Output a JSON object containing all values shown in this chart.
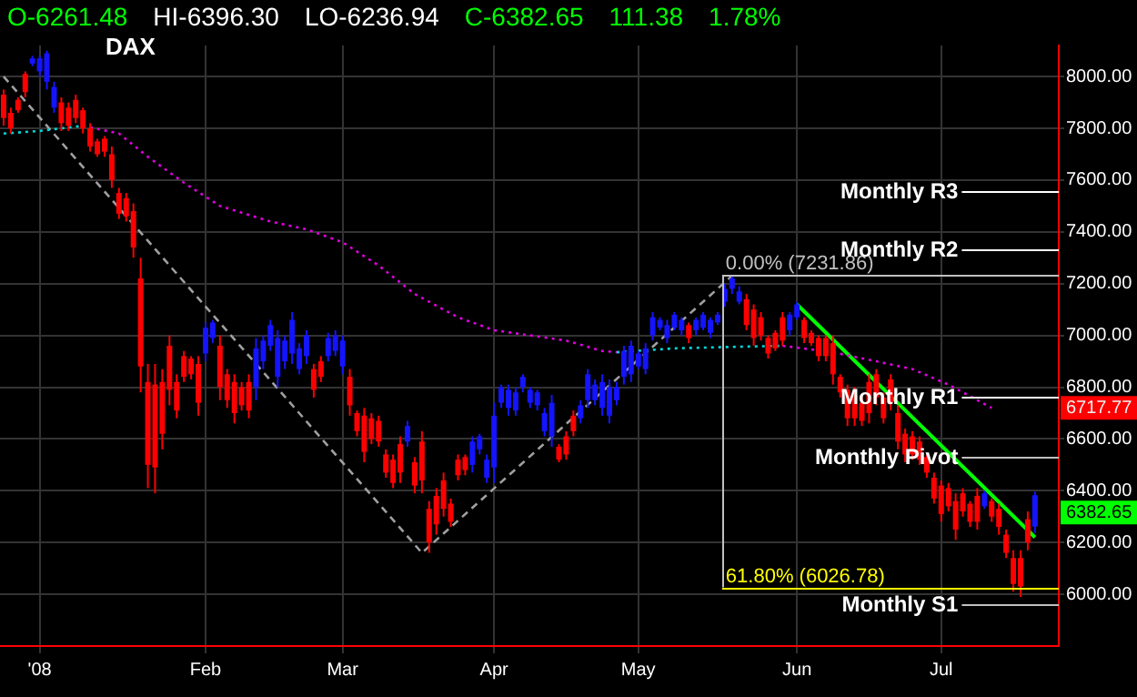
{
  "chart_data": {
    "type": "candlestick",
    "title": "DAX",
    "categories": [
      null,
      null,
      null,
      null,
      null,
      "'08",
      null,
      null,
      null,
      null,
      null,
      null,
      null,
      null,
      null,
      null,
      null,
      null,
      null,
      null,
      null,
      null,
      null,
      null,
      null,
      null,
      null,
      null,
      "Feb",
      null,
      null,
      null,
      null,
      null,
      null,
      null,
      null,
      null,
      null,
      null,
      null,
      null,
      null,
      null,
      null,
      null,
      null,
      "Mar",
      null,
      null,
      null,
      null,
      null,
      null,
      null,
      null,
      null,
      null,
      null,
      null,
      null,
      null,
      null,
      null,
      null,
      null,
      null,
      null,
      "Apr",
      null,
      null,
      null,
      null,
      null,
      null,
      null,
      null,
      null,
      null,
      null,
      null,
      null,
      null,
      null,
      null,
      null,
      null,
      null,
      "May",
      null,
      null,
      null,
      null,
      null,
      null,
      null,
      null,
      null,
      null,
      null,
      null,
      null,
      null,
      null,
      null,
      null,
      null,
      null,
      null,
      null,
      "Jun",
      null,
      null,
      null,
      null,
      null,
      null,
      null,
      null,
      null,
      null,
      null,
      null,
      null,
      null,
      null,
      null,
      null,
      null,
      null,
      "Jul",
      null,
      null,
      null,
      null,
      null,
      null,
      null,
      null,
      null,
      null,
      null,
      null,
      null
    ],
    "ohlc": [
      [
        7930,
        7950,
        7810,
        7840
      ],
      [
        7860,
        7880,
        7780,
        7800
      ],
      [
        7910,
        7920,
        7860,
        7870
      ],
      [
        8010,
        8020,
        7920,
        7940
      ],
      [
        8050,
        8080,
        8040,
        8070
      ],
      [
        8020,
        8080,
        8000,
        8070
      ],
      [
        7980,
        8100,
        7950,
        8090
      ],
      [
        7880,
        7980,
        7860,
        7960
      ],
      [
        7900,
        7920,
        7790,
        7820
      ],
      [
        7880,
        7900,
        7790,
        7810
      ],
      [
        7910,
        7930,
        7820,
        7840
      ],
      [
        7870,
        7880,
        7780,
        7800
      ],
      [
        7800,
        7820,
        7710,
        7730
      ],
      [
        7750,
        7760,
        7690,
        7700
      ],
      [
        7760,
        7770,
        7690,
        7710
      ],
      [
        7700,
        7730,
        7570,
        7600
      ],
      [
        7550,
        7570,
        7450,
        7470
      ],
      [
        7530,
        7550,
        7440,
        7460
      ],
      [
        7480,
        7510,
        7300,
        7340
      ],
      [
        7220,
        7300,
        6780,
        6880
      ],
      [
        6820,
        6890,
        6410,
        6500
      ],
      [
        6810,
        6890,
        6390,
        6490
      ],
      [
        6820,
        6870,
        6560,
        6620
      ],
      [
        6960,
        7000,
        6730,
        6790
      ],
      [
        6820,
        6850,
        6680,
        6710
      ],
      [
        6920,
        6940,
        6820,
        6840
      ],
      [
        6910,
        6920,
        6830,
        6850
      ],
      [
        6890,
        6920,
        6690,
        6740
      ],
      [
        6930,
        7050,
        6900,
        7030
      ],
      [
        6990,
        7060,
        6970,
        7050
      ],
      [
        6960,
        7000,
        6750,
        6800
      ],
      [
        6850,
        6870,
        6720,
        6750
      ],
      [
        6820,
        6850,
        6660,
        6700
      ],
      [
        6800,
        6820,
        6710,
        6730
      ],
      [
        6820,
        6850,
        6680,
        6710
      ],
      [
        6800,
        6990,
        6750,
        6950
      ],
      [
        6900,
        7000,
        6870,
        6980
      ],
      [
        6960,
        7060,
        6940,
        7040
      ],
      [
        6840,
        7020,
        6800,
        6990
      ],
      [
        6900,
        7000,
        6870,
        6980
      ],
      [
        6930,
        7090,
        6890,
        7060
      ],
      [
        6870,
        6970,
        6850,
        6950
      ],
      [
        6920,
        7020,
        6890,
        7000
      ],
      [
        6870,
        6890,
        6760,
        6790
      ],
      [
        6900,
        6920,
        6820,
        6840
      ],
      [
        6920,
        7010,
        6900,
        6990
      ],
      [
        6940,
        7020,
        6920,
        7000
      ],
      [
        6880,
        7000,
        6850,
        6980
      ],
      [
        6840,
        6870,
        6690,
        6730
      ],
      [
        6700,
        6710,
        6610,
        6630
      ],
      [
        6690,
        6720,
        6510,
        6550
      ],
      [
        6680,
        6700,
        6580,
        6600
      ],
      [
        6670,
        6690,
        6570,
        6590
      ],
      [
        6540,
        6560,
        6450,
        6470
      ],
      [
        6520,
        6540,
        6410,
        6430
      ],
      [
        6580,
        6610,
        6430,
        6470
      ],
      [
        6590,
        6670,
        6570,
        6650
      ],
      [
        6510,
        6530,
        6390,
        6420
      ],
      [
        6590,
        6630,
        6390,
        6440
      ],
      [
        6330,
        6360,
        6160,
        6200
      ],
      [
        6380,
        6410,
        6230,
        6270
      ],
      [
        6440,
        6470,
        6300,
        6330
      ],
      [
        6350,
        6370,
        6260,
        6280
      ],
      [
        6520,
        6540,
        6440,
        6460
      ],
      [
        6530,
        6540,
        6460,
        6480
      ],
      [
        6500,
        6610,
        6470,
        6590
      ],
      [
        6560,
        6620,
        6540,
        6610
      ],
      [
        6450,
        6540,
        6430,
        6520
      ],
      [
        6490,
        6740,
        6430,
        6690
      ],
      [
        6740,
        6810,
        6720,
        6800
      ],
      [
        6720,
        6810,
        6690,
        6790
      ],
      [
        6710,
        6800,
        6690,
        6780
      ],
      [
        6800,
        6850,
        6780,
        6840
      ],
      [
        6740,
        6800,
        6720,
        6790
      ],
      [
        6730,
        6790,
        6710,
        6780
      ],
      [
        6630,
        6720,
        6610,
        6700
      ],
      [
        6610,
        6770,
        6570,
        6740
      ],
      [
        6570,
        6580,
        6510,
        6520
      ],
      [
        6610,
        6630,
        6520,
        6540
      ],
      [
        6690,
        6710,
        6610,
        6630
      ],
      [
        6680,
        6750,
        6660,
        6730
      ],
      [
        6750,
        6870,
        6720,
        6850
      ],
      [
        6750,
        6830,
        6730,
        6810
      ],
      [
        6720,
        6850,
        6690,
        6820
      ],
      [
        6690,
        6830,
        6660,
        6800
      ],
      [
        6750,
        6820,
        6730,
        6800
      ],
      [
        6840,
        6960,
        6810,
        6940
      ],
      [
        6850,
        6980,
        6820,
        6960
      ],
      [
        6880,
        6940,
        6870,
        6930
      ],
      [
        6870,
        6970,
        6850,
        6950
      ],
      [
        7000,
        7090,
        6980,
        7070
      ],
      [
        7030,
        7070,
        7020,
        7060
      ],
      [
        6990,
        7060,
        6970,
        7040
      ],
      [
        7030,
        7090,
        7020,
        7080
      ],
      [
        7020,
        7070,
        7000,
        7060
      ],
      [
        7040,
        7050,
        6970,
        6990
      ],
      [
        7020,
        7070,
        7000,
        7060
      ],
      [
        7030,
        7090,
        7020,
        7080
      ],
      [
        7010,
        7070,
        6990,
        7060
      ],
      [
        7050,
        7090,
        7040,
        7080
      ],
      [
        7130,
        7200,
        7110,
        7180
      ],
      [
        7180,
        7230,
        7160,
        7220
      ],
      [
        7130,
        7190,
        7120,
        7170
      ],
      [
        7140,
        7160,
        7020,
        7040
      ],
      [
        7100,
        7120,
        6960,
        6990
      ],
      [
        7070,
        7090,
        6980,
        7000
      ],
      [
        6990,
        7000,
        6910,
        6930
      ],
      [
        7010,
        7020,
        6940,
        6950
      ],
      [
        7070,
        7090,
        6960,
        6980
      ],
      [
        7020,
        7090,
        7000,
        7080
      ],
      [
        7070,
        7130,
        7060,
        7120
      ],
      [
        7060,
        7070,
        6970,
        6990
      ],
      [
        7010,
        7020,
        6960,
        6970
      ],
      [
        6990,
        7000,
        6900,
        6920
      ],
      [
        6990,
        7000,
        6900,
        6920
      ],
      [
        6970,
        7000,
        6810,
        6850
      ],
      [
        6840,
        6850,
        6760,
        6780
      ],
      [
        6790,
        6810,
        6650,
        6680
      ],
      [
        6770,
        6800,
        6650,
        6680
      ],
      [
        6740,
        6760,
        6650,
        6670
      ],
      [
        6820,
        6850,
        6660,
        6700
      ],
      [
        6850,
        6870,
        6730,
        6760
      ],
      [
        6760,
        6780,
        6660,
        6680
      ],
      [
        6830,
        6850,
        6710,
        6740
      ],
      [
        6700,
        6730,
        6560,
        6590
      ],
      [
        6620,
        6640,
        6510,
        6540
      ],
      [
        6610,
        6630,
        6520,
        6540
      ],
      [
        6590,
        6610,
        6500,
        6520
      ],
      [
        6530,
        6540,
        6450,
        6470
      ],
      [
        6450,
        6470,
        6350,
        6370
      ],
      [
        6420,
        6440,
        6280,
        6310
      ],
      [
        6410,
        6430,
        6320,
        6340
      ],
      [
        6360,
        6390,
        6210,
        6250
      ],
      [
        6390,
        6410,
        6300,
        6320
      ],
      [
        6350,
        6360,
        6260,
        6280
      ],
      [
        6380,
        6410,
        6250,
        6280
      ],
      [
        6340,
        6400,
        6330,
        6390
      ],
      [
        6360,
        6370,
        6280,
        6300
      ],
      [
        6330,
        6350,
        6230,
        6260
      ],
      [
        6230,
        6250,
        6140,
        6160
      ],
      [
        6140,
        6170,
        6010,
        6040
      ],
      [
        6140,
        6170,
        5990,
        6030
      ],
      [
        6290,
        6320,
        6170,
        6200
      ],
      [
        6261.48,
        6396.3,
        6236.94,
        6382.65
      ]
    ],
    "ylim": [
      5800,
      8120
    ],
    "yticks": [
      {
        "value": 6000,
        "label": "6000.00"
      },
      {
        "value": 6200,
        "label": "6200.00"
      },
      {
        "value": 6400,
        "label": "6400.00"
      },
      {
        "value": 6600,
        "label": "6600.00"
      },
      {
        "value": 6800,
        "label": "6800.00"
      },
      {
        "value": 7000,
        "label": "7000.00"
      },
      {
        "value": 7200,
        "label": "7200.00"
      },
      {
        "value": 7400,
        "label": "7400.00"
      },
      {
        "value": 7600,
        "label": "7600.00"
      },
      {
        "value": 7800,
        "label": "7800.00"
      },
      {
        "value": 8000,
        "label": "8000.00"
      }
    ],
    "grid": true,
    "series": [
      {
        "type": "line",
        "color": "#00d8d8",
        "line_style": "dotted",
        "values": [
          7780,
          null,
          null,
          null,
          null,
          7790,
          null,
          null,
          null,
          null,
          null,
          7810,
          null,
          null,
          null,
          null,
          null,
          null,
          null,
          null,
          null,
          null,
          null,
          null,
          null,
          null,
          null,
          null,
          null,
          null,
          null,
          null,
          null,
          null,
          null,
          null,
          null,
          null,
          null,
          null,
          null,
          null,
          null,
          null,
          null,
          null,
          null,
          null,
          null,
          null,
          null,
          null,
          null,
          null,
          null,
          null,
          null,
          null,
          null,
          null,
          null,
          null,
          null,
          null,
          null,
          null,
          null,
          null,
          null,
          null,
          null,
          null,
          null,
          null,
          null,
          null,
          null,
          null,
          null,
          null,
          null,
          null,
          null,
          null,
          null,
          null,
          null,
          null,
          null,
          null,
          null,
          null,
          null,
          null,
          null,
          null,
          null,
          null,
          null,
          null,
          null,
          null,
          null,
          null,
          null,
          null,
          null,
          null,
          null,
          null,
          null,
          null,
          null,
          null,
          null,
          null,
          null,
          null,
          null,
          null,
          null,
          null,
          null,
          null,
          null,
          null,
          null,
          null,
          null,
          null,
          null,
          null,
          null,
          null,
          null,
          null,
          null,
          null,
          null,
          null,
          null,
          null,
          null,
          null
        ]
      },
      {
        "type": "line",
        "color": "#e000e0",
        "line_style": "dotted",
        "values": [
          null,
          null,
          null,
          null,
          null,
          null,
          null,
          null,
          null,
          null,
          null,
          7810,
          null,
          null,
          null,
          null,
          7780,
          null,
          null,
          null,
          7690,
          null,
          null,
          null,
          null,
          7590,
          null,
          null,
          null,
          null,
          7500,
          null,
          null,
          null,
          null,
          null,
          null,
          7440,
          null,
          null,
          null,
          null,
          7410,
          null,
          null,
          null,
          null,
          7360,
          null,
          null,
          null,
          null,
          7270,
          null,
          null,
          null,
          null,
          7160,
          null,
          null,
          null,
          null,
          null,
          7070,
          null,
          null,
          null,
          null,
          7020,
          null,
          null,
          null,
          null,
          7000,
          null,
          null,
          null,
          null,
          6980,
          null,
          null,
          null,
          null,
          6940,
          null,
          6935,
          null,
          null,
          null,
          null,
          null,
          null,
          null,
          null,
          null,
          null,
          null,
          null,
          null,
          null,
          null,
          null,
          null,
          null,
          null,
          null,
          null,
          null,
          null,
          null,
          null,
          null,
          null,
          null,
          null,
          null,
          null,
          null,
          null,
          null,
          null,
          null,
          null,
          null,
          null,
          null,
          null,
          null,
          null,
          null,
          null,
          null,
          null,
          null,
          null,
          null,
          null,
          null,
          null,
          null,
          null,
          null,
          null,
          null
        ]
      },
      {
        "type": "line",
        "color": "#00d8d8",
        "line_style": "dotted",
        "values": [
          null,
          null,
          null,
          null,
          null,
          null,
          null,
          null,
          null,
          null,
          null,
          null,
          null,
          null,
          null,
          null,
          null,
          null,
          null,
          null,
          null,
          null,
          null,
          null,
          null,
          null,
          null,
          null,
          null,
          null,
          null,
          null,
          null,
          null,
          null,
          null,
          null,
          null,
          null,
          null,
          null,
          null,
          null,
          null,
          null,
          null,
          null,
          null,
          null,
          null,
          null,
          null,
          null,
          null,
          null,
          null,
          null,
          null,
          null,
          null,
          null,
          null,
          null,
          null,
          null,
          null,
          null,
          null,
          null,
          null,
          null,
          null,
          null,
          null,
          null,
          null,
          null,
          null,
          null,
          null,
          null,
          null,
          null,
          null,
          null,
          6935,
          null,
          null,
          null,
          null,
          null,
          null,
          null,
          6950,
          null,
          null,
          null,
          null,
          null,
          null,
          6955,
          null,
          null,
          null,
          null,
          null,
          null,
          null,
          6960,
          null,
          null,
          null,
          null,
          null,
          null,
          null,
          null,
          null,
          null,
          null,
          null,
          null,
          null,
          null,
          null,
          null,
          null,
          null,
          null,
          null,
          null,
          null,
          null,
          null,
          null,
          null,
          null,
          null,
          null,
          null,
          null,
          null,
          null,
          null
        ]
      },
      {
        "type": "line",
        "color": "#e000e0",
        "line_style": "dotted",
        "values": [
          null,
          null,
          null,
          null,
          null,
          null,
          null,
          null,
          null,
          null,
          null,
          null,
          null,
          null,
          null,
          null,
          null,
          null,
          null,
          null,
          null,
          null,
          null,
          null,
          null,
          null,
          null,
          null,
          null,
          null,
          null,
          null,
          null,
          null,
          null,
          null,
          null,
          null,
          null,
          null,
          null,
          null,
          null,
          null,
          null,
          null,
          null,
          null,
          null,
          null,
          null,
          null,
          null,
          null,
          null,
          null,
          null,
          null,
          null,
          null,
          null,
          null,
          null,
          null,
          null,
          null,
          null,
          null,
          null,
          null,
          null,
          null,
          null,
          null,
          null,
          null,
          null,
          null,
          null,
          null,
          null,
          null,
          null,
          null,
          null,
          null,
          null,
          null,
          null,
          null,
          null,
          null,
          null,
          null,
          null,
          null,
          null,
          null,
          null,
          null,
          null,
          null,
          null,
          null,
          null,
          null,
          null,
          null,
          6960,
          null,
          null,
          null,
          null,
          null,
          null,
          6935,
          null,
          null,
          null,
          null,
          null,
          6900,
          null,
          null,
          null,
          null,
          6870,
          null,
          null,
          null,
          null,
          6810,
          null,
          null,
          null,
          null,
          null,
          6720,
          null,
          null,
          null,
          null,
          null,
          null
        ]
      },
      {
        "type": "line",
        "color": "#a0a0a0",
        "line_style": "dashed",
        "values": [
          8000,
          null,
          null,
          null,
          null,
          null,
          null,
          null,
          null,
          null,
          null,
          null,
          null,
          null,
          null,
          null,
          null,
          null,
          null,
          null,
          null,
          null,
          null,
          null,
          null,
          null,
          null,
          null,
          null,
          null,
          null,
          null,
          null,
          null,
          null,
          null,
          null,
          null,
          null,
          null,
          null,
          null,
          null,
          null,
          null,
          null,
          null,
          null,
          null,
          null,
          null,
          null,
          null,
          null,
          null,
          null,
          null,
          null,
          6160,
          null,
          null,
          null,
          null,
          null,
          null,
          null,
          null,
          null,
          null,
          null,
          null,
          null,
          null,
          null,
          null,
          null,
          null,
          null,
          null,
          null,
          null,
          null,
          null,
          null,
          null,
          null,
          null,
          null,
          null,
          null,
          null,
          null,
          null,
          null,
          null,
          null,
          null,
          null,
          null,
          null,
          null,
          7230,
          null,
          null,
          null,
          null,
          null,
          null,
          null,
          null,
          null,
          null,
          null,
          null,
          null,
          null,
          null,
          null,
          null,
          null,
          null,
          null,
          null,
          null,
          null,
          null,
          null,
          null,
          null,
          null,
          null,
          null,
          null,
          null,
          null,
          null,
          null,
          null,
          null,
          null,
          null,
          null,
          null,
          null
        ]
      },
      {
        "type": "line",
        "color": "#00ff00",
        "line_style": "solid",
        "values": [
          null,
          null,
          null,
          null,
          null,
          null,
          null,
          null,
          null,
          null,
          null,
          null,
          null,
          null,
          null,
          null,
          null,
          null,
          null,
          null,
          null,
          null,
          null,
          null,
          null,
          null,
          null,
          null,
          null,
          null,
          null,
          null,
          null,
          null,
          null,
          null,
          null,
          null,
          null,
          null,
          null,
          null,
          null,
          null,
          null,
          null,
          null,
          null,
          null,
          null,
          null,
          null,
          null,
          null,
          null,
          null,
          null,
          null,
          null,
          null,
          null,
          null,
          null,
          null,
          null,
          null,
          null,
          null,
          null,
          null,
          null,
          null,
          null,
          null,
          null,
          null,
          null,
          null,
          null,
          null,
          null,
          null,
          null,
          null,
          null,
          null,
          null,
          null,
          null,
          null,
          null,
          null,
          null,
          null,
          null,
          null,
          null,
          null,
          null,
          null,
          null,
          null,
          null,
          null,
          null,
          null,
          null,
          null,
          null,
          null,
          7120,
          null,
          null,
          null,
          null,
          null,
          null,
          null,
          null,
          null,
          null,
          null,
          null,
          null,
          null,
          null,
          null,
          null,
          null,
          null,
          null,
          null,
          null,
          null,
          null,
          null,
          null,
          null,
          null,
          null,
          null,
          null,
          null,
          6220
        ]
      }
    ],
    "ref_lines": [
      {
        "axis": "y",
        "value": 7231.86,
        "label": "0.00% (7231.86)",
        "color": "#c0c0c0"
      },
      {
        "axis": "y",
        "value": 6026.78,
        "label": "61.80% (6026.78)",
        "color": "#ffff00"
      },
      {
        "axis": "y",
        "value": 7560,
        "label": "Monthly R3",
        "color": "#ffffff"
      },
      {
        "axis": "y",
        "value": 7330,
        "label": "Monthly R2",
        "color": "#ffffff"
      },
      {
        "axis": "y",
        "value": 6760,
        "label": "Monthly R1",
        "color": "#ffffff"
      },
      {
        "axis": "y",
        "value": 6530,
        "label": "Monthly Pivot",
        "color": "#c0c0c0"
      },
      {
        "axis": "y",
        "value": 5960,
        "label": "Monthly S1",
        "color": "#c0c0c0"
      }
    ],
    "annotations": [
      "O-6261.48",
      "HI-6396.30",
      "LO-6236.94",
      "C-6382.65",
      "111.38",
      "1.78%",
      "6717.77",
      "6382.65"
    ]
  }
}
